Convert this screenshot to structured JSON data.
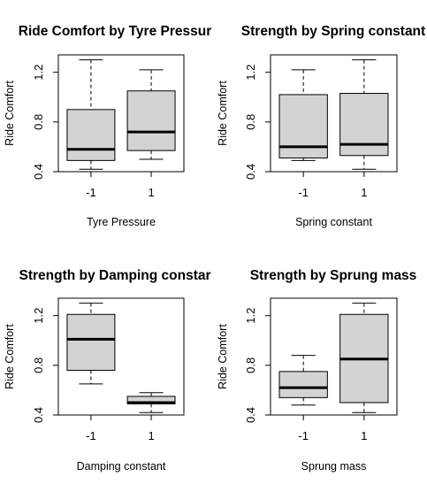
{
  "chart_data": [
    {
      "type": "boxplot",
      "title": "Ride Comfort by Tyre Pressur",
      "xlabel": "Tyre Pressure",
      "ylabel": "Ride Comfort",
      "categories": [
        "-1",
        "1"
      ],
      "yticks": [
        "0.4",
        "0.8",
        "1.2"
      ],
      "ylim": [
        0.4,
        1.34
      ],
      "grid": false,
      "boxes": [
        {
          "category": "-1",
          "whisker_low": 0.42,
          "q1": 0.49,
          "median": 0.58,
          "q3": 0.9,
          "whisker_high": 1.3
        },
        {
          "category": "1",
          "whisker_low": 0.5,
          "q1": 0.57,
          "median": 0.72,
          "q3": 1.05,
          "whisker_high": 1.22
        }
      ]
    },
    {
      "type": "boxplot",
      "title": "Strength by Spring constant",
      "xlabel": "Spring constant",
      "ylabel": "Ride Comfort",
      "categories": [
        "-1",
        "1"
      ],
      "yticks": [
        "0.4",
        "0.8",
        "1.2"
      ],
      "ylim": [
        0.4,
        1.34
      ],
      "grid": false,
      "boxes": [
        {
          "category": "-1",
          "whisker_low": 0.49,
          "q1": 0.51,
          "median": 0.6,
          "q3": 1.02,
          "whisker_high": 1.22
        },
        {
          "category": "1",
          "whisker_low": 0.42,
          "q1": 0.53,
          "median": 0.62,
          "q3": 1.03,
          "whisker_high": 1.3
        }
      ]
    },
    {
      "type": "boxplot",
      "title": "Strength by Damping constar",
      "xlabel": "Damping constant",
      "ylabel": "Ride Comfort",
      "categories": [
        "-1",
        "1"
      ],
      "yticks": [
        "0.4",
        "0.8",
        "1.2"
      ],
      "ylim": [
        0.4,
        1.34
      ],
      "grid": false,
      "boxes": [
        {
          "category": "-1",
          "whisker_low": 0.65,
          "q1": 0.76,
          "median": 1.01,
          "q3": 1.21,
          "whisker_high": 1.3
        },
        {
          "category": "1",
          "whisker_low": 0.42,
          "q1": 0.49,
          "median": 0.5,
          "q3": 0.55,
          "whisker_high": 0.58
        }
      ]
    },
    {
      "type": "boxplot",
      "title": "Strength by Sprung mass",
      "xlabel": "Sprung mass",
      "ylabel": "Ride Comfort",
      "categories": [
        "-1",
        "1"
      ],
      "yticks": [
        "0.4",
        "0.8",
        "1.2"
      ],
      "ylim": [
        0.4,
        1.34
      ],
      "grid": false,
      "boxes": [
        {
          "category": "-1",
          "whisker_low": 0.48,
          "q1": 0.54,
          "median": 0.62,
          "q3": 0.75,
          "whisker_high": 0.88
        },
        {
          "category": "1",
          "whisker_low": 0.42,
          "q1": 0.5,
          "median": 0.85,
          "q3": 1.21,
          "whisker_high": 1.3
        }
      ]
    }
  ],
  "colors": {
    "box_fill": "#d3d3d3",
    "line": "#000000",
    "background": "#ffffff"
  }
}
